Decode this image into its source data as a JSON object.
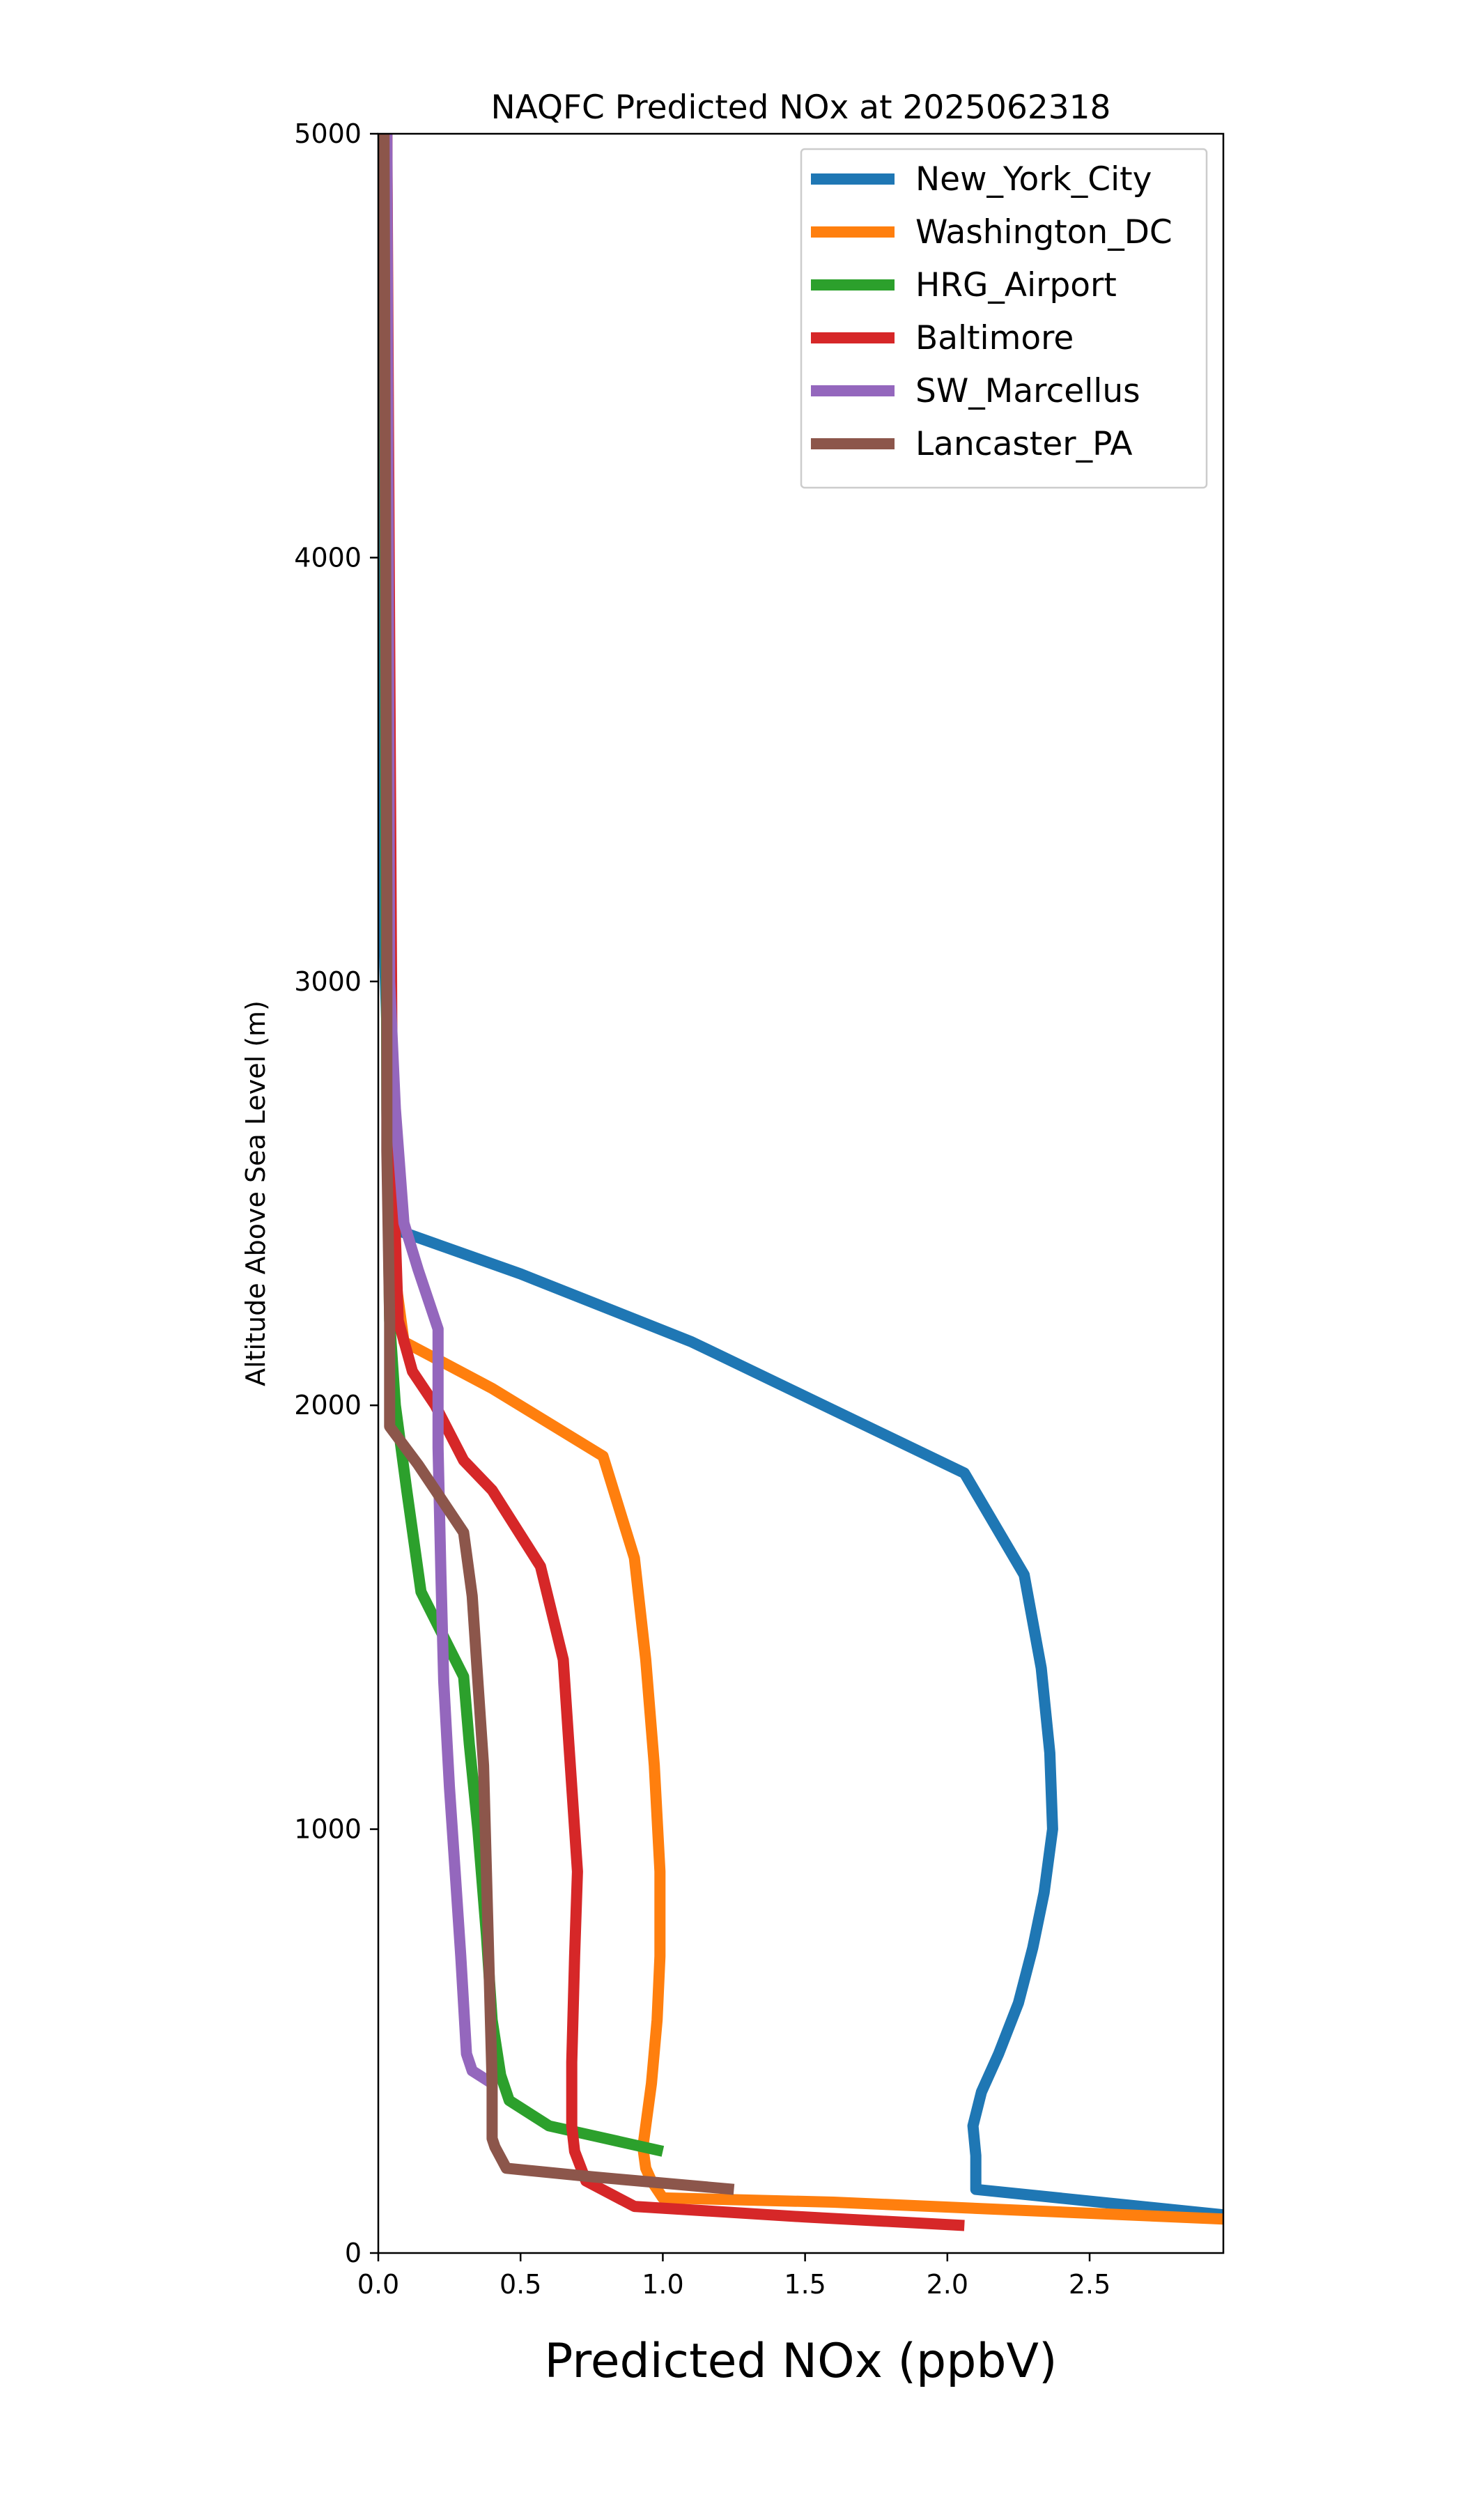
{
  "chart_data": {
    "type": "line",
    "title": "NAQFC Predicted NOx at 2025062318",
    "xlabel": "Predicted NOx (ppbV)",
    "ylabel": "Altitude Above Sea Level (m)",
    "xlim": [
      0,
      2.97
    ],
    "ylim": [
      0,
      5000
    ],
    "xticks": [
      0,
      0.5,
      1,
      1.5,
      2,
      2.5
    ],
    "xtick_labels": [
      "0.0",
      "0.5",
      "1.0",
      "1.5",
      "2.0",
      "2.5"
    ],
    "yticks": [
      0,
      1000,
      2000,
      3000,
      4000,
      5000
    ],
    "ytick_labels": [
      "0",
      "1000",
      "2000",
      "3000",
      "4000",
      "5000"
    ],
    "grid": false,
    "legend_position": "upper right",
    "series": [
      {
        "name": "New_York_City",
        "color": "#1f77b4",
        "points": [
          [
            2.97,
            90
          ],
          [
            2.1,
            150
          ],
          [
            2.1,
            230
          ],
          [
            2.09,
            300
          ],
          [
            2.12,
            380
          ],
          [
            2.18,
            470
          ],
          [
            2.25,
            590
          ],
          [
            2.3,
            720
          ],
          [
            2.34,
            850
          ],
          [
            2.37,
            1000
          ],
          [
            2.36,
            1180
          ],
          [
            2.33,
            1380
          ],
          [
            2.27,
            1600
          ],
          [
            2.06,
            1840
          ],
          [
            1.1,
            2150
          ],
          [
            0.5,
            2310
          ],
          [
            0.08,
            2410
          ],
          [
            0.04,
            2700
          ],
          [
            0.02,
            3100
          ],
          [
            0.02,
            5000
          ]
        ]
      },
      {
        "name": "Washington_DC",
        "color": "#ff7f0e",
        "points": [
          [
            2.97,
            80
          ],
          [
            1.6,
            120
          ],
          [
            1.0,
            130
          ],
          [
            0.96,
            170
          ],
          [
            0.94,
            200
          ],
          [
            0.93,
            250
          ],
          [
            0.94,
            300
          ],
          [
            0.96,
            400
          ],
          [
            0.98,
            550
          ],
          [
            0.99,
            700
          ],
          [
            0.99,
            900
          ],
          [
            0.97,
            1150
          ],
          [
            0.94,
            1400
          ],
          [
            0.9,
            1640
          ],
          [
            0.79,
            1880
          ],
          [
            0.4,
            2040
          ],
          [
            0.09,
            2150
          ],
          [
            0.06,
            2300
          ],
          [
            0.04,
            2700
          ],
          [
            0.03,
            5000
          ]
        ]
      },
      {
        "name": "HRG_Airport",
        "color": "#2ca02c",
        "points": [
          [
            1.0,
            240
          ],
          [
            0.8,
            270
          ],
          [
            0.6,
            300
          ],
          [
            0.46,
            360
          ],
          [
            0.43,
            420
          ],
          [
            0.4,
            550
          ],
          [
            0.38,
            750
          ],
          [
            0.35,
            1000
          ],
          [
            0.32,
            1200
          ],
          [
            0.3,
            1360
          ],
          [
            0.15,
            1560
          ],
          [
            0.1,
            1800
          ],
          [
            0.06,
            2000
          ],
          [
            0.04,
            2200
          ],
          [
            0.03,
            2700
          ],
          [
            0.02,
            5000
          ]
        ]
      },
      {
        "name": "Baltimore",
        "color": "#d62728",
        "points": [
          [
            2.06,
            65
          ],
          [
            1.5,
            85
          ],
          [
            0.9,
            110
          ],
          [
            0.73,
            170
          ],
          [
            0.69,
            240
          ],
          [
            0.68,
            300
          ],
          [
            0.68,
            450
          ],
          [
            0.69,
            700
          ],
          [
            0.7,
            900
          ],
          [
            0.69,
            1000
          ],
          [
            0.67,
            1200
          ],
          [
            0.65,
            1400
          ],
          [
            0.57,
            1620
          ],
          [
            0.4,
            1800
          ],
          [
            0.3,
            1870
          ],
          [
            0.2,
            2000
          ],
          [
            0.12,
            2080
          ],
          [
            0.07,
            2200
          ],
          [
            0.05,
            2600
          ],
          [
            0.03,
            5000
          ]
        ]
      },
      {
        "name": "SW_Marcellus",
        "color": "#9467bd",
        "points": [
          [
            0.4,
            400
          ],
          [
            0.33,
            430
          ],
          [
            0.31,
            470
          ],
          [
            0.29,
            700
          ],
          [
            0.27,
            900
          ],
          [
            0.25,
            1100
          ],
          [
            0.23,
            1350
          ],
          [
            0.22,
            1600
          ],
          [
            0.21,
            1900
          ],
          [
            0.21,
            2180
          ],
          [
            0.14,
            2320
          ],
          [
            0.09,
            2430
          ],
          [
            0.06,
            2700
          ],
          [
            0.04,
            3000
          ],
          [
            0.03,
            5000
          ]
        ]
      },
      {
        "name": "Lancaster_PA",
        "color": "#8c564b",
        "points": [
          [
            1.25,
            150
          ],
          [
            0.75,
            180
          ],
          [
            0.45,
            200
          ],
          [
            0.41,
            250
          ],
          [
            0.4,
            270
          ],
          [
            0.4,
            400
          ],
          [
            0.39,
            650
          ],
          [
            0.38,
            900
          ],
          [
            0.37,
            1150
          ],
          [
            0.35,
            1350
          ],
          [
            0.33,
            1550
          ],
          [
            0.3,
            1700
          ],
          [
            0.22,
            1780
          ],
          [
            0.14,
            1860
          ],
          [
            0.04,
            1950
          ],
          [
            0.04,
            2200
          ],
          [
            0.03,
            2600
          ],
          [
            0.03,
            3200
          ],
          [
            0.02,
            5000
          ]
        ]
      }
    ]
  }
}
